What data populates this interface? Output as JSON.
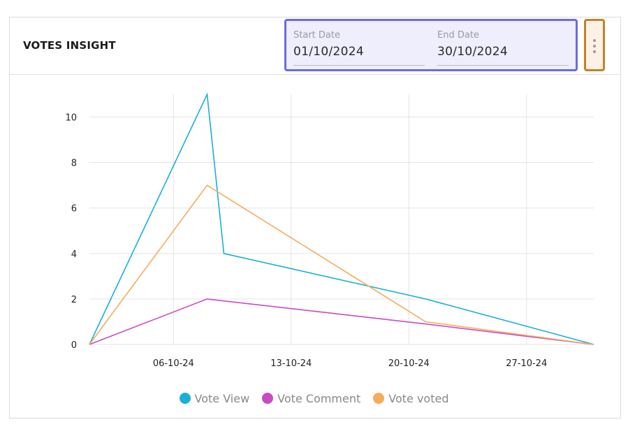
{
  "header": {
    "title": "VOTES INSIGHT",
    "start_label": "Start Date",
    "start_value": "01/10/2024",
    "end_label": "End Date",
    "end_value": "30/10/2024",
    "menu_icon": "more-vertical-icon"
  },
  "chart_data": {
    "type": "line",
    "x_axis": "date",
    "x": [
      "2024-10-01",
      "2024-10-08",
      "2024-10-09",
      "2024-10-21",
      "2024-10-31"
    ],
    "x_tick_labels": [
      "06-10-24",
      "13-10-24",
      "20-10-24",
      "27-10-24"
    ],
    "x_ticks": [
      "2024-10-06",
      "2024-10-13",
      "2024-10-20",
      "2024-10-27"
    ],
    "x_range": [
      "2024-10-01",
      "2024-10-31"
    ],
    "ylim": [
      0,
      11
    ],
    "y_ticks": [
      0,
      2,
      4,
      6,
      8,
      10
    ],
    "y_tick_labels": [
      "0",
      "2",
      "4",
      "6",
      "8",
      "10"
    ],
    "grid": true,
    "legend_position": "bottom",
    "series": [
      {
        "name": "Vote View",
        "color": "#1aaedc",
        "points": [
          [
            "2024-10-01",
            0
          ],
          [
            "2024-10-08",
            11
          ],
          [
            "2024-10-09",
            4
          ],
          [
            "2024-10-21",
            2
          ],
          [
            "2024-10-31",
            0
          ]
        ]
      },
      {
        "name": "Vote Comment",
        "color": "#c94bc2",
        "points": [
          [
            "2024-10-01",
            0
          ],
          [
            "2024-10-08",
            2
          ],
          [
            "2024-10-21",
            0.9
          ],
          [
            "2024-10-31",
            0
          ]
        ]
      },
      {
        "name": "Vote voted",
        "color": "#f4ad5c",
        "points": [
          [
            "2024-10-01",
            0
          ],
          [
            "2024-10-08",
            7
          ],
          [
            "2024-10-21",
            1
          ],
          [
            "2024-10-31",
            0
          ]
        ]
      }
    ]
  }
}
